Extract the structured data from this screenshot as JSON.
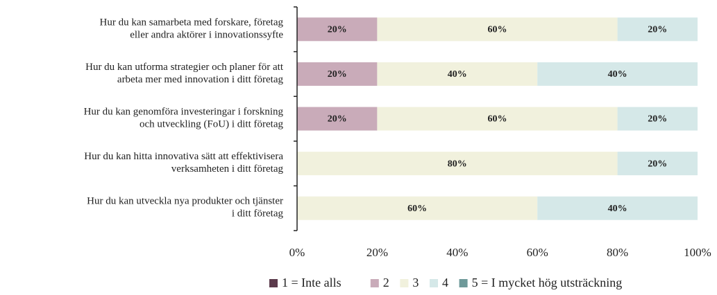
{
  "chart_data": {
    "type": "stacked_barh",
    "categories": [
      "Hur du kan samarbeta med forskare, företag\neller andra aktörer i innovationssyfte",
      "Hur du kan utforma strategier och planer för att\narbeta mer med innovation i ditt företag",
      "Hur du kan genomföra investeringar i forskning\noch utveckling (FoU) i ditt företag",
      "Hur du kan hitta innovativa sätt att effektivisera\nverksamheten i ditt företag",
      "Hur du kan utveckla nya produkter och tjänster\ni ditt företag"
    ],
    "series": [
      {
        "name": "1 = Inte alls",
        "color": "#5b3a4b",
        "values": [
          0,
          0,
          0,
          0,
          0
        ],
        "value_labels": [
          null,
          null,
          null,
          null,
          null
        ]
      },
      {
        "name": "2",
        "color": "#c9abb9",
        "values": [
          20,
          20,
          20,
          0,
          0
        ],
        "value_labels": [
          "20%",
          "20%",
          "20%",
          null,
          null
        ]
      },
      {
        "name": "3",
        "color": "#f1f1dd",
        "values": [
          60,
          40,
          60,
          80,
          60
        ],
        "value_labels": [
          "60%",
          "40%",
          "60%",
          "80%",
          "60%"
        ]
      },
      {
        "name": "4",
        "color": "#d5e8e8",
        "values": [
          20,
          40,
          20,
          20,
          40
        ],
        "value_labels": [
          "20%",
          "40%",
          "20%",
          "20%",
          "40%"
        ]
      },
      {
        "name": "5 = I mycket hög utsträckning",
        "color": "#6e9999",
        "values": [
          0,
          0,
          0,
          0,
          0
        ],
        "value_labels": [
          null,
          null,
          null,
          null,
          null
        ]
      }
    ],
    "xlim": [
      0,
      100
    ],
    "xticks": [
      {
        "value": 0,
        "label": "0%"
      },
      {
        "value": 20,
        "label": "20%"
      },
      {
        "value": 40,
        "label": "40%"
      },
      {
        "value": 60,
        "label": "60%"
      },
      {
        "value": 80,
        "label": "80%"
      },
      {
        "value": 100,
        "label": "100%"
      }
    ],
    "legend": "bottom"
  }
}
